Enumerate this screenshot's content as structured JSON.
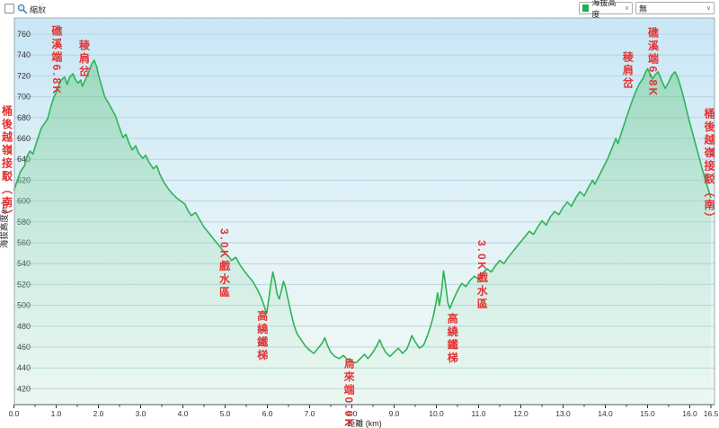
{
  "toolbar": {
    "zoom_label": "縮放",
    "series_dropdown": {
      "value": "海拔高度",
      "swatch_color": "#1fae53"
    },
    "overlay_dropdown": {
      "value": "無"
    }
  },
  "chart_data": {
    "type": "area",
    "title": "",
    "xlabel": "距離  (km)",
    "ylabel": "海拔高度(m)",
    "legend_position": "toolbar-dropdown",
    "grid": "horizontal",
    "xlim": [
      0,
      16.5
    ],
    "ylim": [
      405,
      775
    ],
    "x_major_tick_step": 1.0,
    "x_minor_tick_step": 0.5,
    "x_extra_tick": 16.5,
    "y_ticks": [
      420,
      440,
      460,
      480,
      500,
      520,
      540,
      560,
      580,
      600,
      620,
      640,
      660,
      680,
      700,
      720,
      740,
      760
    ],
    "colors": {
      "line": "#2fb357",
      "fill_top": "rgba(104,200,134,0.50)",
      "fill_bottom": "rgba(185,232,205,0.10)",
      "bg_top": "#c9e7f6",
      "bg_mid": "#e3f2f7",
      "bg_bottom": "#f1faf4",
      "grid": "#b8d3e0",
      "border": "#9aa9b6",
      "axis": "#444444",
      "tick_label": "#333333",
      "annotation": "#e23333"
    },
    "annotations": [
      {
        "text": "桶後越嶺接駁（南）",
        "km": -0.15,
        "elev_top": 692
      },
      {
        "text": "礁溪端6.8K",
        "km": 1.03,
        "elev_top": 769
      },
      {
        "text": "稜肩岔",
        "km": 1.68,
        "elev_top": 755
      },
      {
        "text": "3.0K戲水區",
        "km": 5.0,
        "elev_top": 574
      },
      {
        "text": "高繞鐵梯",
        "km": 5.9,
        "elev_top": 495
      },
      {
        "text": "烏來端0.0K",
        "km": 7.95,
        "elev_top": 450
      },
      {
        "text": "高繞鐵梯",
        "km": 10.4,
        "elev_top": 493
      },
      {
        "text": "3.0K戲水區",
        "km": 11.1,
        "elev_top": 563
      },
      {
        "text": "稜肩岔",
        "km": 14.55,
        "elev_top": 744
      },
      {
        "text": "礁溪端6.8K",
        "km": 15.15,
        "elev_top": 767
      },
      {
        "text": "桶後越嶺接駁（南）",
        "km": 16.48,
        "elev_top": 689
      }
    ],
    "series": [
      {
        "name": "海拔高度",
        "points": [
          [
            0.0,
            610
          ],
          [
            0.08,
            620
          ],
          [
            0.15,
            628
          ],
          [
            0.25,
            634
          ],
          [
            0.3,
            642
          ],
          [
            0.38,
            648
          ],
          [
            0.45,
            645
          ],
          [
            0.5,
            652
          ],
          [
            0.58,
            662
          ],
          [
            0.65,
            670
          ],
          [
            0.72,
            674
          ],
          [
            0.8,
            679
          ],
          [
            0.87,
            690
          ],
          [
            0.95,
            700
          ],
          [
            1.0,
            704
          ],
          [
            1.05,
            710
          ],
          [
            1.12,
            716
          ],
          [
            1.2,
            719
          ],
          [
            1.26,
            712
          ],
          [
            1.32,
            719
          ],
          [
            1.4,
            722
          ],
          [
            1.45,
            717
          ],
          [
            1.52,
            713
          ],
          [
            1.58,
            716
          ],
          [
            1.62,
            710
          ],
          [
            1.7,
            717
          ],
          [
            1.78,
            725
          ],
          [
            1.85,
            732
          ],
          [
            1.9,
            735
          ],
          [
            1.96,
            729
          ],
          [
            2.0,
            721
          ],
          [
            2.08,
            710
          ],
          [
            2.15,
            700
          ],
          [
            2.25,
            693
          ],
          [
            2.32,
            688
          ],
          [
            2.4,
            682
          ],
          [
            2.5,
            670
          ],
          [
            2.58,
            661
          ],
          [
            2.65,
            664
          ],
          [
            2.72,
            656
          ],
          [
            2.8,
            649
          ],
          [
            2.88,
            653
          ],
          [
            2.95,
            646
          ],
          [
            3.05,
            641
          ],
          [
            3.12,
            644
          ],
          [
            3.2,
            637
          ],
          [
            3.3,
            631
          ],
          [
            3.38,
            634
          ],
          [
            3.45,
            626
          ],
          [
            3.55,
            618
          ],
          [
            3.65,
            612
          ],
          [
            3.75,
            607
          ],
          [
            3.85,
            603
          ],
          [
            3.95,
            600
          ],
          [
            4.05,
            597
          ],
          [
            4.12,
            591
          ],
          [
            4.2,
            586
          ],
          [
            4.3,
            589
          ],
          [
            4.4,
            582
          ],
          [
            4.5,
            575
          ],
          [
            4.6,
            570
          ],
          [
            4.7,
            565
          ],
          [
            4.8,
            560
          ],
          [
            4.9,
            555
          ],
          [
            5.0,
            550
          ],
          [
            5.08,
            547
          ],
          [
            5.15,
            543
          ],
          [
            5.25,
            546
          ],
          [
            5.35,
            539
          ],
          [
            5.45,
            533
          ],
          [
            5.55,
            528
          ],
          [
            5.65,
            523
          ],
          [
            5.75,
            516
          ],
          [
            5.85,
            508
          ],
          [
            5.92,
            500
          ],
          [
            5.98,
            492
          ],
          [
            6.03,
            505
          ],
          [
            6.08,
            520
          ],
          [
            6.13,
            532
          ],
          [
            6.18,
            523
          ],
          [
            6.23,
            511
          ],
          [
            6.28,
            506
          ],
          [
            6.33,
            514
          ],
          [
            6.38,
            523
          ],
          [
            6.43,
            517
          ],
          [
            6.5,
            504
          ],
          [
            6.57,
            491
          ],
          [
            6.63,
            481
          ],
          [
            6.7,
            473
          ],
          [
            6.8,
            467
          ],
          [
            6.9,
            461
          ],
          [
            7.0,
            457
          ],
          [
            7.1,
            454
          ],
          [
            7.2,
            459
          ],
          [
            7.3,
            464
          ],
          [
            7.36,
            469
          ],
          [
            7.42,
            462
          ],
          [
            7.5,
            455
          ],
          [
            7.6,
            451
          ],
          [
            7.7,
            449
          ],
          [
            7.8,
            452
          ],
          [
            7.9,
            448
          ],
          [
            8.0,
            446
          ],
          [
            8.1,
            445
          ],
          [
            8.2,
            449
          ],
          [
            8.3,
            453
          ],
          [
            8.38,
            449
          ],
          [
            8.5,
            455
          ],
          [
            8.6,
            462
          ],
          [
            8.66,
            467
          ],
          [
            8.72,
            461
          ],
          [
            8.8,
            455
          ],
          [
            8.9,
            451
          ],
          [
            9.0,
            455
          ],
          [
            9.1,
            459
          ],
          [
            9.2,
            454
          ],
          [
            9.3,
            458
          ],
          [
            9.36,
            464
          ],
          [
            9.42,
            471
          ],
          [
            9.5,
            465
          ],
          [
            9.6,
            459
          ],
          [
            9.7,
            462
          ],
          [
            9.78,
            470
          ],
          [
            9.85,
            478
          ],
          [
            9.92,
            488
          ],
          [
            9.98,
            500
          ],
          [
            10.03,
            512
          ],
          [
            10.07,
            500
          ],
          [
            10.12,
            512
          ],
          [
            10.17,
            533
          ],
          [
            10.22,
            520
          ],
          [
            10.27,
            503
          ],
          [
            10.32,
            497
          ],
          [
            10.4,
            505
          ],
          [
            10.5,
            514
          ],
          [
            10.6,
            521
          ],
          [
            10.7,
            518
          ],
          [
            10.8,
            524
          ],
          [
            10.9,
            528
          ],
          [
            11.0,
            525
          ],
          [
            11.1,
            531
          ],
          [
            11.2,
            535
          ],
          [
            11.3,
            532
          ],
          [
            11.4,
            538
          ],
          [
            11.5,
            543
          ],
          [
            11.6,
            540
          ],
          [
            11.7,
            546
          ],
          [
            11.8,
            551
          ],
          [
            11.9,
            556
          ],
          [
            12.0,
            561
          ],
          [
            12.1,
            566
          ],
          [
            12.2,
            571
          ],
          [
            12.3,
            568
          ],
          [
            12.4,
            575
          ],
          [
            12.5,
            581
          ],
          [
            12.6,
            577
          ],
          [
            12.7,
            585
          ],
          [
            12.8,
            590
          ],
          [
            12.9,
            587
          ],
          [
            13.0,
            594
          ],
          [
            13.1,
            599
          ],
          [
            13.2,
            595
          ],
          [
            13.3,
            603
          ],
          [
            13.4,
            609
          ],
          [
            13.5,
            605
          ],
          [
            13.6,
            613
          ],
          [
            13.7,
            620
          ],
          [
            13.75,
            616
          ],
          [
            13.85,
            624
          ],
          [
            13.95,
            632
          ],
          [
            14.05,
            640
          ],
          [
            14.15,
            650
          ],
          [
            14.25,
            660
          ],
          [
            14.3,
            655
          ],
          [
            14.4,
            668
          ],
          [
            14.5,
            680
          ],
          [
            14.6,
            692
          ],
          [
            14.7,
            703
          ],
          [
            14.8,
            712
          ],
          [
            14.9,
            718
          ],
          [
            14.95,
            723
          ],
          [
            15.0,
            727
          ],
          [
            15.06,
            722
          ],
          [
            15.12,
            717
          ],
          [
            15.18,
            721
          ],
          [
            15.25,
            724
          ],
          [
            15.3,
            719
          ],
          [
            15.36,
            713
          ],
          [
            15.42,
            708
          ],
          [
            15.5,
            714
          ],
          [
            15.58,
            721
          ],
          [
            15.65,
            724
          ],
          [
            15.72,
            718
          ],
          [
            15.78,
            710
          ],
          [
            15.85,
            700
          ],
          [
            15.92,
            688
          ],
          [
            16.0,
            675
          ],
          [
            16.1,
            660
          ],
          [
            16.2,
            645
          ],
          [
            16.3,
            630
          ],
          [
            16.4,
            616
          ],
          [
            16.5,
            603
          ]
        ]
      }
    ]
  }
}
